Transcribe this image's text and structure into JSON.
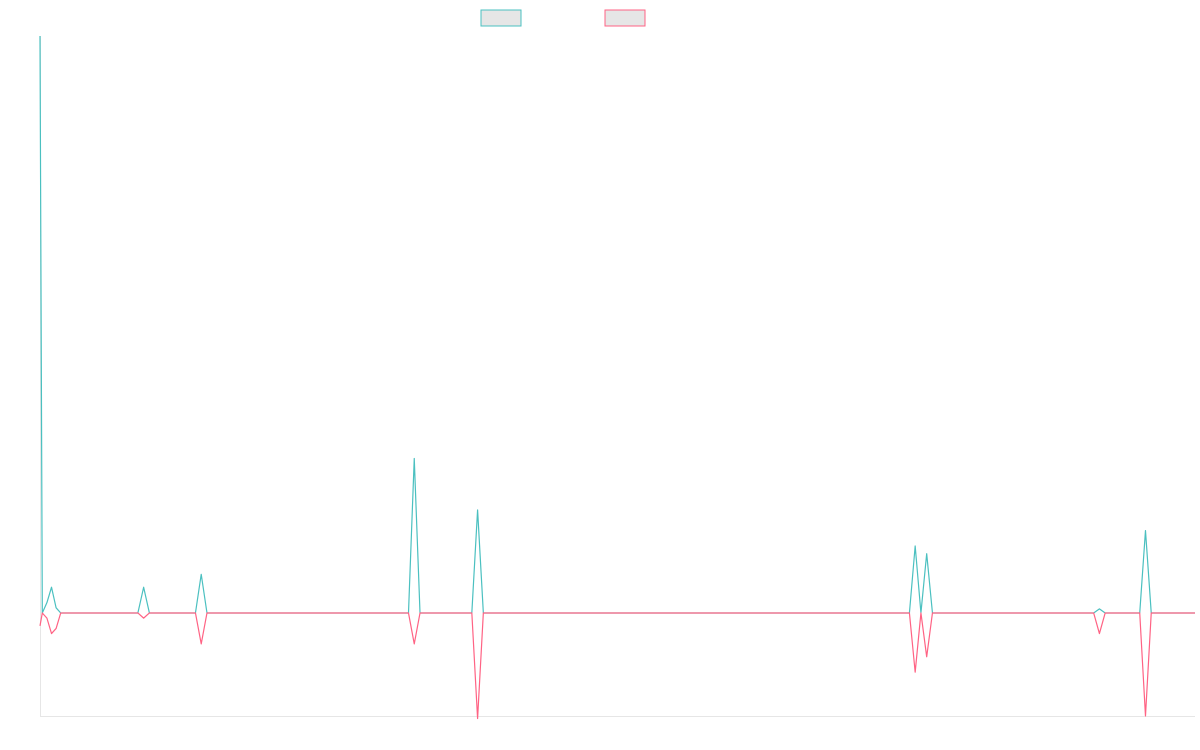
{
  "chart_data": {
    "type": "line",
    "title": "",
    "xlabel": "",
    "ylabel": "",
    "grid": false,
    "legend_position": "top-center",
    "x": [
      0,
      2,
      6,
      10,
      14,
      18,
      80,
      85,
      90,
      95,
      100,
      135,
      140,
      145,
      320,
      325,
      330,
      375,
      380,
      385,
      755,
      760,
      765,
      770,
      775,
      915,
      920,
      925,
      955,
      960,
      965,
      1003
    ],
    "ylim": [
      -20,
      112
    ],
    "series": [
      {
        "color": "#4bc0c0",
        "fill": "#e6e6e6",
        "values": [
          112,
          0,
          2,
          5,
          1,
          0,
          0,
          0,
          5,
          0,
          0,
          0,
          7.5,
          0,
          0,
          30,
          0,
          0,
          20,
          0,
          0,
          13,
          0,
          11.5,
          0,
          0,
          0.8,
          0,
          0,
          16,
          0,
          0
        ]
      },
      {
        "color": "#ff6384",
        "fill": "#e6e6e6",
        "values": [
          -2.5,
          0,
          -1,
          -4,
          -3,
          0,
          0,
          0,
          -1,
          0,
          0,
          0,
          -6,
          0,
          0,
          -6,
          0,
          0,
          -20.5,
          0,
          0,
          -11.5,
          0,
          -8.5,
          0,
          0,
          -4,
          0,
          0,
          -20,
          0,
          0
        ]
      }
    ]
  }
}
